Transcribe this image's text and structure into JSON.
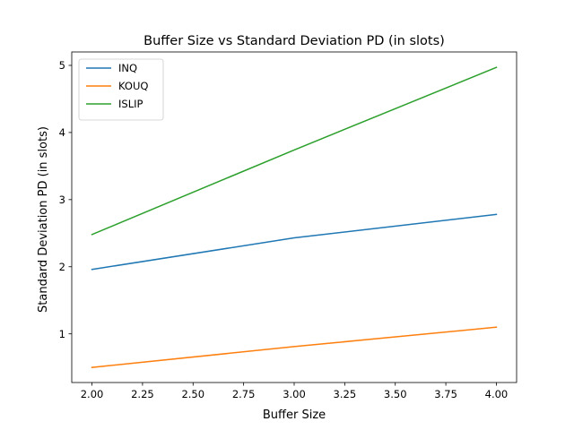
{
  "chart_data": {
    "type": "line",
    "title": "Buffer Size vs Standard Deviation PD (in slots)",
    "xlabel": "Buffer Size",
    "ylabel": "Standard Deviation PD (in slots)",
    "x": [
      2.0,
      3.0,
      4.0
    ],
    "xlim": [
      1.9,
      4.1
    ],
    "ylim": [
      0.275,
      5.2
    ],
    "xticks": [
      2.0,
      2.25,
      2.5,
      2.75,
      3.0,
      3.25,
      3.5,
      3.75,
      4.0
    ],
    "xtick_labels": [
      "2.00",
      "2.25",
      "2.50",
      "2.75",
      "3.00",
      "3.25",
      "3.50",
      "3.75",
      "4.00"
    ],
    "yticks": [
      1,
      2,
      3,
      4,
      5
    ],
    "ytick_labels": [
      "1",
      "2",
      "3",
      "4",
      "5"
    ],
    "grid": false,
    "legend_position": "top-left",
    "series": [
      {
        "name": "INQ",
        "color": "#1f77b4",
        "values": [
          1.96,
          2.43,
          2.78
        ]
      },
      {
        "name": "KOUQ",
        "color": "#ff7f0e",
        "values": [
          0.5,
          0.81,
          1.1
        ]
      },
      {
        "name": "ISLIP",
        "color": "#2ca02c",
        "values": [
          2.48,
          3.74,
          4.97
        ]
      }
    ]
  }
}
